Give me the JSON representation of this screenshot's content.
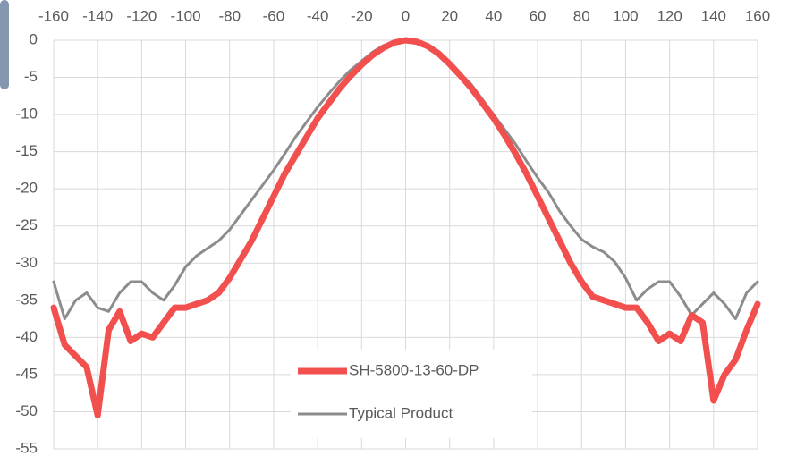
{
  "chart_data": {
    "type": "line",
    "x": [
      -160,
      -155,
      -150,
      -145,
      -140,
      -135,
      -130,
      -125,
      -120,
      -115,
      -110,
      -105,
      -100,
      -95,
      -90,
      -85,
      -80,
      -75,
      -70,
      -65,
      -60,
      -55,
      -50,
      -45,
      -40,
      -35,
      -30,
      -25,
      -20,
      -15,
      -10,
      -5,
      0,
      5,
      10,
      15,
      20,
      25,
      30,
      35,
      40,
      45,
      50,
      55,
      60,
      65,
      70,
      75,
      80,
      85,
      90,
      95,
      100,
      105,
      110,
      115,
      120,
      125,
      130,
      135,
      140,
      145,
      150,
      155,
      160
    ],
    "series": [
      {
        "name": "SH-5800-13-60-DP",
        "color": "#f24f4f",
        "values": [
          -36,
          -41,
          -42.5,
          -44,
          -50.5,
          -39,
          -36.5,
          -40.5,
          -39.5,
          -40,
          -38,
          -36,
          -36,
          -35.5,
          -35,
          -34,
          -32,
          -29.5,
          -27,
          -24,
          -21,
          -18,
          -15.5,
          -13,
          -10.5,
          -8.5,
          -6.5,
          -4.8,
          -3.3,
          -2,
          -1,
          -0.3,
          0,
          -0.2,
          -0.8,
          -1.8,
          -3.2,
          -4.8,
          -6.5,
          -8.5,
          -10.5,
          -12.8,
          -15.3,
          -18,
          -21,
          -24,
          -27,
          -30,
          -32.5,
          -34.5,
          -35,
          -35.5,
          -36,
          -36,
          -38,
          -40.5,
          -39.5,
          -40.5,
          -37,
          -38,
          -48.5,
          -45,
          -43,
          -39,
          -35.5
        ]
      },
      {
        "name": "Typical Product",
        "color": "#8c8c8c",
        "values": [
          -32.5,
          -37.5,
          -35,
          -34,
          -36,
          -36.5,
          -34,
          -32.5,
          -32.5,
          -34,
          -35,
          -33,
          -30.5,
          -29,
          -28,
          -27,
          -25.5,
          -23.5,
          -21.5,
          -19.5,
          -17.5,
          -15.3,
          -13,
          -11,
          -9,
          -7.2,
          -5.5,
          -4,
          -2.8,
          -1.6,
          -0.7,
          -0.2,
          0,
          -0.3,
          -0.9,
          -1.8,
          -3,
          -4.5,
          -6,
          -8,
          -10,
          -12,
          -14,
          -16.3,
          -18.5,
          -20.5,
          -23,
          -25,
          -26.8,
          -27.8,
          -28.5,
          -29.8,
          -32,
          -35,
          -33.5,
          -32.5,
          -32.5,
          -34.5,
          -37,
          -35.5,
          -34,
          -35.5,
          -37.5,
          -34,
          -32.5
        ]
      }
    ],
    "xlim": [
      -160,
      160
    ],
    "xticks": [
      -160,
      -140,
      -120,
      -100,
      -80,
      -60,
      -40,
      -20,
      0,
      20,
      40,
      60,
      80,
      100,
      120,
      140,
      160
    ],
    "ylim": [
      -55,
      0
    ],
    "yticks": [
      0,
      -5,
      -10,
      -15,
      -20,
      -25,
      -30,
      -35,
      -40,
      -45,
      -50,
      -55
    ],
    "grid": true
  }
}
